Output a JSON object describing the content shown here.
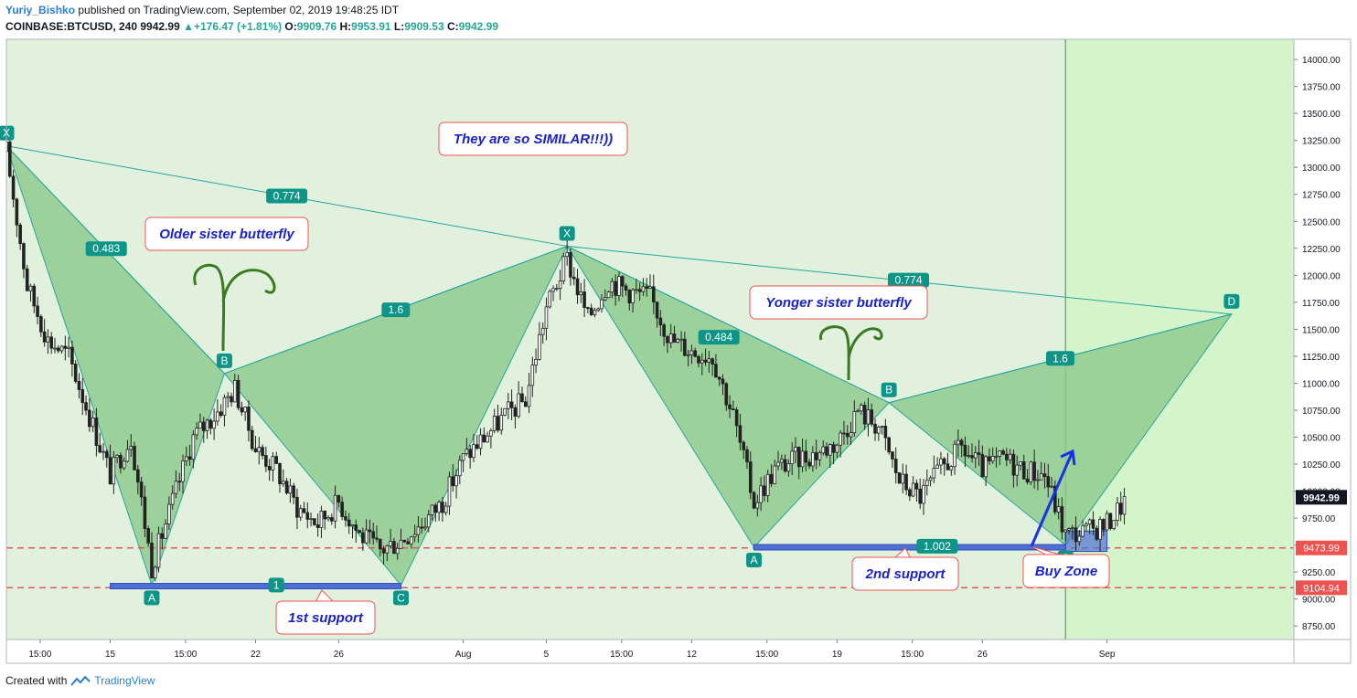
{
  "header": {
    "author": "Yuriy_Bishko",
    "published_text": "published on TradingView.com, September 02, 2019 19:48:25 IDT",
    "symbol": "COINBASE:BTCUSD, 240",
    "last": "9942.99",
    "arrow": "▲",
    "change": "+176.47 (+1.81%)",
    "o_label": "O:",
    "o_value": "9909.76",
    "h_label": "H:",
    "h_value": "9953.91",
    "l_label": "L:",
    "l_value": "9909.53",
    "c_label": "C:",
    "c_value": "9942.99"
  },
  "footer": {
    "created_with": "Created with",
    "brand": "TradingView"
  },
  "colors": {
    "background": "#e1f1de",
    "future_zone": "#d4f5cc",
    "pattern_fill": "#8cc98a",
    "pattern_line": "#26a69a",
    "label_bg": "#0f9488",
    "support_line": "#ef5350",
    "support_box": "#4f6fd4",
    "callout_text": "#1a22c8",
    "callout_border": "#ef5350",
    "arrow": "#1533e6",
    "squiggle": "#3c7a22"
  },
  "chart_data": {
    "type": "candlestick",
    "symbol": "COINBASE:BTCUSD",
    "interval": "240",
    "ylim": [
      8625,
      14187
    ],
    "y_ticks": [
      8750,
      9000,
      9250,
      9500,
      9750,
      10000,
      10250,
      10500,
      10750,
      11000,
      11250,
      11500,
      11750,
      12000,
      12250,
      12500,
      12750,
      13000,
      13250,
      13500,
      13750,
      14000
    ],
    "y_tick_labels": [
      "8750.00",
      "9000.00",
      "9250.00",
      "9500.00",
      "9750.00",
      "10000.00",
      "10250.00",
      "10500.00",
      "10750.00",
      "11000.00",
      "11250.00",
      "11500.00",
      "11750.00",
      "12000.00",
      "12250.00",
      "12500.00",
      "12750.00",
      "13000.00",
      "13250.00",
      "13500.00",
      "13750.00",
      "14000.00"
    ],
    "xlim": [
      "2019-07-10",
      "2019-09-10"
    ],
    "x_ticks": [
      {
        "label": "15:00",
        "date": "2019-07-11T15:00"
      },
      {
        "label": "15",
        "date": "2019-07-15"
      },
      {
        "label": "15:00",
        "date": "2019-07-18T15:00"
      },
      {
        "label": "22",
        "date": "2019-07-22"
      },
      {
        "label": "26",
        "date": "2019-07-26"
      },
      {
        "label": "Aug",
        "date": "2019-08-01"
      },
      {
        "label": "5",
        "date": "2019-08-05"
      },
      {
        "label": "15:00",
        "date": "2019-08-08T15:00"
      },
      {
        "label": "12",
        "date": "2019-08-12"
      },
      {
        "label": "15:00",
        "date": "2019-08-15T15:00"
      },
      {
        "label": "19",
        "date": "2019-08-19"
      },
      {
        "label": "15:00",
        "date": "2019-08-22T15:00"
      },
      {
        "label": "26",
        "date": "2019-08-26"
      },
      {
        "label": "Sep",
        "date": "2019-09-01"
      }
    ],
    "future_zone_start": "2019-08-30",
    "price_path": [
      [
        "2019-07-10",
        13150
      ],
      [
        "2019-07-11",
        11900
      ],
      [
        "2019-07-12",
        11400
      ],
      [
        "2019-07-13",
        11250
      ],
      [
        "2019-07-14",
        10700
      ],
      [
        "2019-07-15",
        10150
      ],
      [
        "2019-07-16",
        10500
      ],
      [
        "2019-07-17",
        9300
      ],
      [
        "2019-07-18",
        9900
      ],
      [
        "2019-07-19",
        10500
      ],
      [
        "2019-07-20",
        10700
      ],
      [
        "2019-07-21",
        10950
      ],
      [
        "2019-07-22",
        10400
      ],
      [
        "2019-07-23",
        10200
      ],
      [
        "2019-07-24",
        9850
      ],
      [
        "2019-07-25",
        9700
      ],
      [
        "2019-07-26",
        9900
      ],
      [
        "2019-07-27",
        9600
      ],
      [
        "2019-07-28",
        9450
      ],
      [
        "2019-07-29",
        9550
      ],
      [
        "2019-07-30",
        9700
      ],
      [
        "2019-07-31",
        9900
      ],
      [
        "2019-08-01",
        10300
      ],
      [
        "2019-08-02",
        10500
      ],
      [
        "2019-08-03",
        10700
      ],
      [
        "2019-08-04",
        10850
      ],
      [
        "2019-08-05",
        11700
      ],
      [
        "2019-08-06",
        12150
      ],
      [
        "2019-08-07",
        11600
      ],
      [
        "2019-08-08",
        11950
      ],
      [
        "2019-08-09",
        11850
      ],
      [
        "2019-08-10",
        11800
      ],
      [
        "2019-08-11",
        11400
      ],
      [
        "2019-08-12",
        11300
      ],
      [
        "2019-08-13",
        11250
      ],
      [
        "2019-08-14",
        10700
      ],
      [
        "2019-08-15",
        9900
      ],
      [
        "2019-08-16",
        10200
      ],
      [
        "2019-08-17",
        10300
      ],
      [
        "2019-08-18",
        10350
      ],
      [
        "2019-08-19",
        10450
      ],
      [
        "2019-08-20",
        10750
      ],
      [
        "2019-08-21",
        10600
      ],
      [
        "2019-08-22",
        10100
      ],
      [
        "2019-08-23",
        9950
      ],
      [
        "2019-08-24",
        10200
      ],
      [
        "2019-08-25",
        10400
      ],
      [
        "2019-08-26",
        10200
      ],
      [
        "2019-08-27",
        10300
      ],
      [
        "2019-08-28",
        10200
      ],
      [
        "2019-08-29",
        10150
      ],
      [
        "2019-08-30",
        9600
      ],
      [
        "2019-08-31",
        9620
      ],
      [
        "2019-09-01",
        9700
      ],
      [
        "2019-09-02",
        9942.99
      ]
    ],
    "patterns": [
      {
        "name": "Older sister butterfly",
        "points": [
          {
            "label": "X",
            "date": "2019-07-10",
            "price": 13200
          },
          {
            "label": "A",
            "date": "2019-07-17",
            "price": 9130
          },
          {
            "label": "B",
            "date": "2019-07-20T12:00",
            "price": 11090
          },
          {
            "label": "C",
            "date": "2019-07-29",
            "price": 9130
          },
          {
            "label": "D",
            "date": "2019-08-06",
            "price": 12270
          }
        ],
        "ratios": {
          "xa_xb": "0.483",
          "ac_bd": "1.6",
          "ac": "1"
        }
      },
      {
        "name": "Yonger sister butterfly",
        "points": [
          {
            "label": "X",
            "date": "2019-08-06",
            "price": 12270
          },
          {
            "label": "A",
            "date": "2019-08-15",
            "price": 9480
          },
          {
            "label": "B",
            "date": "2019-08-21T12:00",
            "price": 10820
          },
          {
            "label": "C",
            "date": "2019-08-30",
            "price": 9500
          },
          {
            "label": "D",
            "date": "2019-09-07",
            "price": 11640
          }
        ],
        "ratios": {
          "xa_xb": "0.484",
          "ac_bd": "1.6",
          "ac": "1.002"
        }
      }
    ],
    "big_xd_ratios": [
      "0.774",
      "0.774"
    ],
    "horizontal_lines": [
      {
        "price": 9473.99,
        "label": "9473.99"
      },
      {
        "price": 9104.94,
        "label": "9104.94"
      }
    ],
    "last_price_label": "9942.99",
    "support_zones": [
      {
        "from": "2019-07-15",
        "to": "2019-07-29",
        "price": 9120
      },
      {
        "from": "2019-08-15",
        "to": "2019-08-30",
        "price": 9480
      },
      {
        "from": "2019-08-30",
        "to": "2019-09-01",
        "price": 9560,
        "price_top": 9630
      }
    ],
    "annotations": [
      {
        "text": "They are so SIMILAR!!!))"
      },
      {
        "text": "Older sister butterfly"
      },
      {
        "text": "Yonger sister butterfly"
      },
      {
        "text": "1st support"
      },
      {
        "text": "2nd support"
      },
      {
        "text": "Buy Zone"
      }
    ]
  }
}
